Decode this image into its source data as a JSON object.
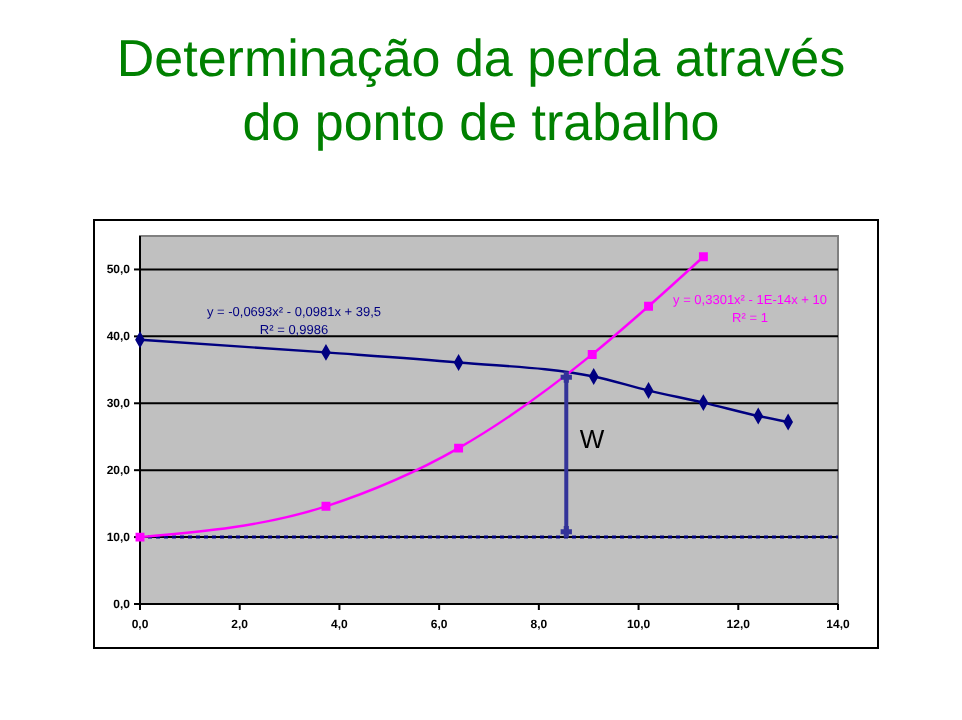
{
  "chart_data": {
    "type": "line",
    "title": "Determinação da perda através\ndo ponto de trabalho",
    "xlim": [
      0,
      14
    ],
    "xticks": [
      {
        "value": 0,
        "label": "0,0"
      },
      {
        "value": 2,
        "label": "2,0"
      },
      {
        "value": 4,
        "label": "4,0"
      },
      {
        "value": 6,
        "label": "6,0"
      },
      {
        "value": 8,
        "label": "8,0"
      },
      {
        "value": 10,
        "label": "10,0"
      },
      {
        "value": 12,
        "label": "12,0"
      },
      {
        "value": 14,
        "label": "14,0"
      }
    ],
    "ylim": [
      0,
      55
    ],
    "yticks": [
      {
        "value": 0,
        "label": "0,0"
      },
      {
        "value": 10,
        "label": "10,0"
      },
      {
        "value": 20,
        "label": "20,0"
      },
      {
        "value": 30,
        "label": "30,0"
      },
      {
        "value": 40,
        "label": "40,0"
      },
      {
        "value": 50,
        "label": "50,0"
      }
    ],
    "grid": "y",
    "series": [
      {
        "color": "#000080",
        "marker": "diamond",
        "x": [
          0,
          3.73,
          6.39,
          9.1,
          10.2,
          11.3,
          12.4,
          13.0
        ],
        "values": [
          39.5,
          37.6,
          36.1,
          34.0,
          31.9,
          30.1,
          28.1,
          27.2
        ]
      },
      {
        "color": "#ff00ff",
        "marker": "square",
        "x": [
          0,
          3.73,
          6.39,
          9.07,
          10.2,
          11.3
        ],
        "values": [
          10,
          14.6,
          23.3,
          37.3,
          44.5,
          51.9
        ]
      },
      {
        "color": "#333399",
        "marker": "cross",
        "x": [
          8.55,
          8.55
        ],
        "values": [
          10.8,
          33.9
        ]
      }
    ],
    "ref_lines": [
      {
        "axis": "y",
        "value": 10,
        "color": "#000080",
        "line_style": "dotted"
      }
    ],
    "annotations": [
      "y = -0,0693x² - 0,0981x + 39,5",
      "R² = 0,9986",
      "y = 0,3301x² - 1E-14x + 10",
      "R² = 1",
      "W"
    ]
  }
}
